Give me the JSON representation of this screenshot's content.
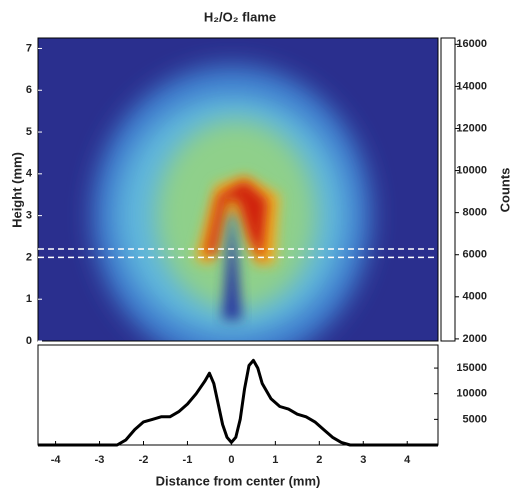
{
  "chart_data": [
    {
      "type": "heatmap",
      "title": "H₂/O₂ flame",
      "ylabel": "Height (mm)",
      "colorbar_label": "Counts",
      "xlim": [
        -4.4,
        4.7
      ],
      "ylim": [
        0,
        7.25
      ],
      "yticks": [
        0,
        1,
        2,
        3,
        4,
        5,
        6,
        7
      ],
      "clim": [
        1900,
        16300
      ],
      "cticks": [
        2000,
        4000,
        6000,
        8000,
        10000,
        12000,
        14000,
        16000
      ],
      "hlines": [
        2.0,
        2.2
      ]
    },
    {
      "type": "line",
      "xlabel": "Distance from center (mm)",
      "xlim": [
        -4.4,
        4.7
      ],
      "xticks": [
        -4,
        -3,
        -2,
        -1,
        0,
        1,
        2,
        3,
        4
      ],
      "ylim": [
        0,
        19500
      ],
      "yticks": [
        5000,
        10000,
        15000
      ],
      "color": "#000000",
      "x": [
        -4.4,
        -2.6,
        -2.4,
        -2.2,
        -2.0,
        -1.8,
        -1.6,
        -1.4,
        -1.2,
        -1.0,
        -0.8,
        -0.6,
        -0.5,
        -0.4,
        -0.3,
        -0.2,
        -0.1,
        0,
        0.1,
        0.2,
        0.3,
        0.4,
        0.5,
        0.6,
        0.7,
        0.9,
        1.1,
        1.3,
        1.5,
        1.7,
        1.9,
        2.1,
        2.3,
        2.5,
        2.7,
        4.7
      ],
      "values": [
        0,
        0,
        1000,
        3000,
        4500,
        5000,
        5500,
        5500,
        6500,
        8000,
        10000,
        12500,
        14000,
        12000,
        8000,
        4000,
        1500,
        500,
        1500,
        5000,
        11000,
        15500,
        16500,
        15000,
        12000,
        9000,
        7500,
        7000,
        6000,
        5500,
        4500,
        3000,
        1500,
        500,
        0,
        0
      ]
    }
  ]
}
